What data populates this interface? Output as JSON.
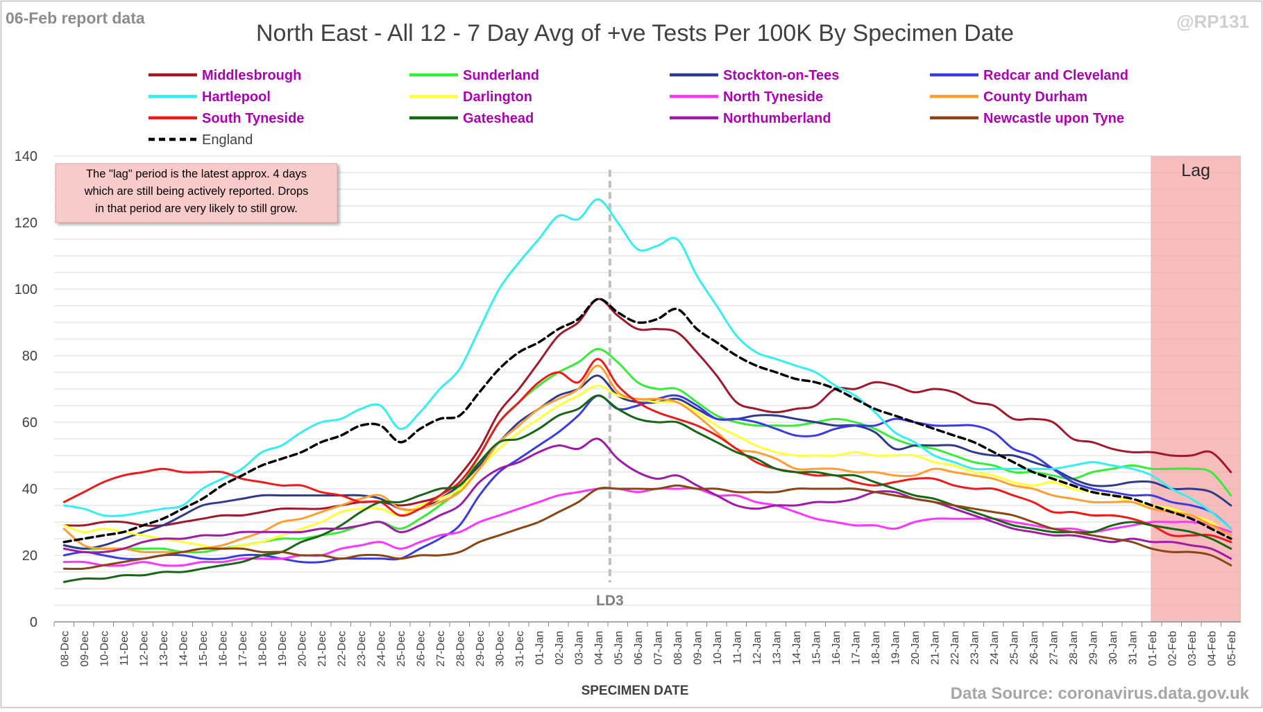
{
  "header": {
    "report_label": "06-Feb report data",
    "handle": "@RP131",
    "source": "Data Source: coronavirus.data.gov.uk"
  },
  "note": {
    "lines": [
      "The \"lag\" period is the latest approx. 4 days",
      "which are still being actively reported. Drops",
      "in that period are very likely to still grow."
    ]
  },
  "colors": {
    "grid": "#d9d9d9",
    "lag_fill": "#f4a7a7",
    "note_fill": "#f8cbcb",
    "legend_text": "#b000b5",
    "ld3_line": "#bfbfbf",
    "axis_text": "#404040"
  },
  "chart_data": {
    "type": "line",
    "title": "North East - All 12 - 7 Day Avg of +ve Tests Per 100K By Specimen Date",
    "xlabel": "SPECIMEN DATE",
    "ylabel": "",
    "ylim": [
      0,
      140
    ],
    "yticks": [
      0,
      20,
      40,
      60,
      80,
      100,
      120,
      140
    ],
    "grid": true,
    "legend_position": "top",
    "x": [
      "08-Dec",
      "09-Dec",
      "10-Dec",
      "11-Dec",
      "12-Dec",
      "13-Dec",
      "14-Dec",
      "15-Dec",
      "16-Dec",
      "17-Dec",
      "18-Dec",
      "19-Dec",
      "20-Dec",
      "21-Dec",
      "22-Dec",
      "23-Dec",
      "24-Dec",
      "25-Dec",
      "26-Dec",
      "27-Dec",
      "28-Dec",
      "29-Dec",
      "30-Dec",
      "31-Dec",
      "01-Jan",
      "02-Jan",
      "03-Jan",
      "04-Jan",
      "05-Jan",
      "06-Jan",
      "07-Jan",
      "08-Jan",
      "09-Jan",
      "10-Jan",
      "11-Jan",
      "12-Jan",
      "13-Jan",
      "14-Jan",
      "15-Jan",
      "16-Jan",
      "17-Jan",
      "18-Jan",
      "19-Jan",
      "20-Jan",
      "21-Jan",
      "22-Jan",
      "23-Jan",
      "24-Jan",
      "25-Jan",
      "26-Jan",
      "27-Jan",
      "28-Jan",
      "29-Jan",
      "30-Jan",
      "31-Jan",
      "01-Feb",
      "02-Feb",
      "03-Feb",
      "04-Feb",
      "05-Feb"
    ],
    "annotations": [
      {
        "label": "LD3",
        "x": "05-Jan"
      },
      {
        "label": "Lag",
        "x_start": "01-Feb",
        "x_end": "05-Feb"
      }
    ],
    "series": [
      {
        "name": "Middlesbrough",
        "color": "#a0182a",
        "width": 3,
        "dash": "",
        "values": [
          29,
          29,
          30,
          30,
          29,
          29,
          30,
          31,
          32,
          32,
          33,
          34,
          34,
          34,
          35,
          36,
          36,
          35,
          36,
          38,
          44,
          52,
          63,
          70,
          78,
          86,
          90,
          97,
          92,
          88,
          88,
          87,
          81,
          74,
          66,
          64,
          63,
          64,
          65,
          70,
          70,
          72,
          71,
          69,
          70,
          69,
          66,
          65,
          61,
          61,
          60,
          55,
          54,
          52,
          51,
          51,
          50,
          50,
          51,
          45
        ]
      },
      {
        "name": "Sunderland",
        "color": "#33ee33",
        "width": 3,
        "dash": "",
        "values": [
          23,
          22,
          22,
          22,
          22,
          22,
          21,
          21,
          22,
          23,
          24,
          25,
          25,
          26,
          27,
          29,
          30,
          28,
          31,
          35,
          40,
          50,
          60,
          66,
          71,
          75,
          78,
          82,
          78,
          72,
          70,
          70,
          66,
          62,
          60,
          59,
          59,
          59,
          60,
          61,
          60,
          58,
          55,
          53,
          52,
          50,
          48,
          47,
          45,
          45,
          44,
          43,
          45,
          46,
          47,
          46,
          46,
          46,
          45,
          38
        ]
      },
      {
        "name": "Stockton-on-Tees",
        "color": "#2e3a8c",
        "width": 3,
        "dash": "",
        "values": [
          23,
          22,
          23,
          25,
          27,
          29,
          32,
          35,
          36,
          37,
          38,
          38,
          38,
          38,
          38,
          38,
          37,
          34,
          34,
          37,
          41,
          47,
          54,
          60,
          64,
          68,
          70,
          74,
          68,
          66,
          66,
          67,
          64,
          61,
          61,
          62,
          62,
          61,
          60,
          59,
          59,
          57,
          52,
          53,
          53,
          53,
          51,
          50,
          50,
          48,
          46,
          43,
          41,
          41,
          42,
          42,
          40,
          40,
          39,
          35
        ]
      },
      {
        "name": "Redcar and Cleveland",
        "color": "#3a3ae6",
        "width": 3,
        "dash": "",
        "values": [
          20,
          21,
          20,
          19,
          19,
          20,
          20,
          19,
          19,
          20,
          20,
          19,
          18,
          18,
          19,
          19,
          19,
          19,
          22,
          25,
          29,
          38,
          45,
          49,
          53,
          57,
          62,
          68,
          64,
          65,
          67,
          68,
          65,
          61,
          61,
          60,
          58,
          56,
          56,
          58,
          59,
          59,
          61,
          60,
          59,
          59,
          59,
          57,
          52,
          50,
          46,
          42,
          40,
          39,
          38,
          38,
          36,
          35,
          33,
          28
        ]
      },
      {
        "name": "Hartlepool",
        "color": "#33f0f0",
        "width": 3,
        "dash": "",
        "values": [
          35,
          34,
          32,
          32,
          33,
          34,
          35,
          40,
          43,
          46,
          51,
          53,
          57,
          60,
          61,
          64,
          65,
          58,
          63,
          70,
          76,
          88,
          100,
          108,
          115,
          122,
          121,
          127,
          120,
          112,
          113,
          115,
          104,
          95,
          86,
          81,
          79,
          77,
          75,
          71,
          68,
          63,
          57,
          54,
          50,
          48,
          46,
          46,
          46,
          46,
          46,
          47,
          48,
          47,
          46,
          44,
          40,
          37,
          33,
          28
        ]
      },
      {
        "name": "Darlington",
        "color": "#ffff33",
        "width": 3,
        "dash": "",
        "values": [
          29,
          27,
          28,
          27,
          26,
          25,
          24,
          23,
          22,
          23,
          24,
          26,
          28,
          30,
          33,
          34,
          34,
          32,
          35,
          37,
          40,
          46,
          52,
          57,
          61,
          65,
          68,
          71,
          68,
          67,
          66,
          66,
          63,
          59,
          56,
          53,
          51,
          50,
          50,
          50,
          51,
          50,
          50,
          50,
          48,
          47,
          45,
          44,
          42,
          41,
          42,
          40,
          39,
          38,
          36,
          35,
          34,
          32,
          30,
          26
        ]
      },
      {
        "name": "North Tyneside",
        "color": "#ff33ff",
        "width": 3,
        "dash": "",
        "values": [
          18,
          18,
          17,
          17,
          18,
          17,
          17,
          18,
          18,
          19,
          19,
          19,
          20,
          20,
          22,
          23,
          24,
          22,
          24,
          26,
          27,
          30,
          32,
          34,
          36,
          38,
          39,
          40,
          40,
          39,
          40,
          40,
          40,
          38,
          38,
          36,
          35,
          33,
          31,
          30,
          29,
          29,
          28,
          30,
          31,
          31,
          31,
          31,
          30,
          29,
          28,
          28,
          27,
          28,
          29,
          30,
          30,
          30,
          29,
          27
        ]
      },
      {
        "name": "County Durham",
        "color": "#ff9d2e",
        "width": 3,
        "dash": "",
        "values": [
          28,
          23,
          22,
          22,
          21,
          21,
          21,
          22,
          23,
          25,
          27,
          30,
          31,
          33,
          35,
          37,
          38,
          34,
          34,
          36,
          39,
          46,
          54,
          59,
          64,
          67,
          70,
          77,
          69,
          67,
          67,
          66,
          62,
          57,
          52,
          51,
          49,
          46,
          46,
          46,
          45,
          45,
          44,
          44,
          46,
          45,
          44,
          43,
          41,
          40,
          38,
          37,
          36,
          36,
          36,
          34,
          33,
          32,
          29,
          26
        ]
      },
      {
        "name": "South Tyneside",
        "color": "#f01818",
        "width": 3,
        "dash": "",
        "values": [
          36,
          39,
          42,
          44,
          45,
          46,
          45,
          45,
          45,
          43,
          42,
          41,
          41,
          39,
          38,
          36,
          36,
          32,
          34,
          38,
          42,
          50,
          60,
          66,
          72,
          75,
          72,
          79,
          71,
          66,
          63,
          61,
          59,
          56,
          52,
          48,
          46,
          45,
          44,
          44,
          42,
          41,
          42,
          43,
          43,
          41,
          40,
          40,
          38,
          36,
          33,
          33,
          32,
          32,
          31,
          29,
          26,
          26,
          26,
          24
        ]
      },
      {
        "name": "Gateshead",
        "color": "#156615",
        "width": 3,
        "dash": "",
        "values": [
          12,
          13,
          13,
          14,
          14,
          15,
          15,
          16,
          17,
          18,
          20,
          21,
          24,
          26,
          29,
          33,
          36,
          36,
          38,
          40,
          41,
          48,
          54,
          55,
          58,
          62,
          64,
          68,
          64,
          61,
          60,
          60,
          57,
          54,
          51,
          49,
          46,
          45,
          45,
          44,
          44,
          42,
          40,
          38,
          37,
          35,
          33,
          31,
          29,
          28,
          27,
          27,
          27,
          29,
          30,
          29,
          28,
          27,
          25,
          22
        ]
      },
      {
        "name": "Northumberland",
        "color": "#9f1aa6",
        "width": 3,
        "dash": "",
        "values": [
          22,
          21,
          21,
          22,
          24,
          25,
          25,
          26,
          26,
          27,
          27,
          27,
          27,
          28,
          28,
          29,
          30,
          27,
          29,
          32,
          35,
          42,
          46,
          48,
          51,
          53,
          52,
          55,
          49,
          45,
          43,
          44,
          41,
          38,
          35,
          34,
          35,
          35,
          36,
          36,
          37,
          39,
          39,
          37,
          36,
          34,
          32,
          30,
          28,
          27,
          26,
          26,
          25,
          24,
          25,
          24,
          24,
          23,
          22,
          19
        ]
      },
      {
        "name": "Newcastle upon Tyne",
        "color": "#8a4513",
        "width": 3,
        "dash": "",
        "values": [
          16,
          16,
          17,
          18,
          19,
          20,
          21,
          22,
          22,
          22,
          21,
          21,
          20,
          20,
          19,
          20,
          20,
          19,
          20,
          20,
          21,
          24,
          26,
          28,
          30,
          33,
          36,
          40,
          40,
          40,
          40,
          41,
          40,
          40,
          39,
          39,
          39,
          40,
          40,
          40,
          40,
          39,
          38,
          37,
          36,
          35,
          34,
          33,
          32,
          30,
          28,
          27,
          26,
          25,
          24,
          22,
          21,
          21,
          20,
          17
        ]
      },
      {
        "name": "England",
        "color": "#000000",
        "width": 3.5,
        "dash": "10,6",
        "values": [
          24,
          25,
          26,
          27,
          29,
          31,
          34,
          37,
          41,
          44,
          47,
          49,
          51,
          54,
          56,
          59,
          59,
          54,
          58,
          61,
          62,
          69,
          76,
          81,
          84,
          88,
          91,
          97,
          93,
          90,
          91,
          94,
          88,
          84,
          80,
          77,
          75,
          73,
          72,
          70,
          67,
          64,
          62,
          60,
          58,
          56,
          54,
          51,
          48,
          45,
          43,
          41,
          39,
          38,
          37,
          35,
          33,
          31,
          28,
          25
        ]
      }
    ]
  }
}
